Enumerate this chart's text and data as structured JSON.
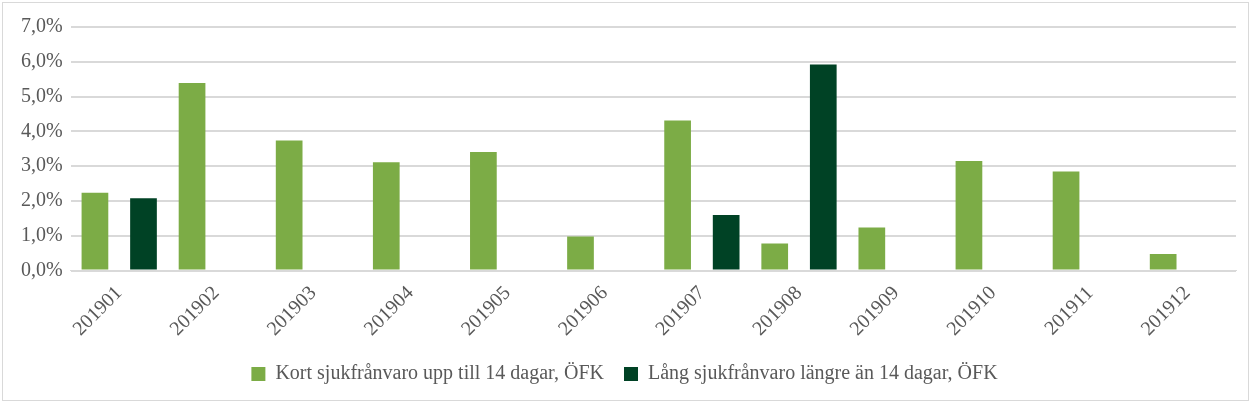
{
  "chart_data": {
    "type": "bar",
    "categories": [
      "201901",
      "201902",
      "201903",
      "201904",
      "201905",
      "201906",
      "201907",
      "201908",
      "201909",
      "201910",
      "201911",
      "201912"
    ],
    "series": [
      {
        "name": "Kort sjukfrånvaro upp till 14 dagar, ÖFK",
        "color": "#7cac46",
        "values": [
          2.24,
          5.39,
          3.74,
          3.11,
          3.41,
          0.98,
          4.31,
          0.78,
          1.24,
          3.15,
          2.85,
          0.48
        ]
      },
      {
        "name": "Lång sjukfrånvaro längre än 14 dagar, ÖFK",
        "color": "#004225",
        "values": [
          2.08,
          null,
          null,
          null,
          null,
          null,
          1.6,
          5.92,
          null,
          null,
          null,
          null
        ]
      }
    ],
    "ylim": [
      0,
      7
    ],
    "yticks": [
      {
        "value": 0,
        "label": "0,0%"
      },
      {
        "value": 1,
        "label": "1,0%"
      },
      {
        "value": 2,
        "label": "2,0%"
      },
      {
        "value": 3,
        "label": "3,0%"
      },
      {
        "value": 4,
        "label": "4,0%"
      },
      {
        "value": 5,
        "label": "5,0%"
      },
      {
        "value": 6,
        "label": "6,0%"
      },
      {
        "value": 7,
        "label": "7,0%"
      }
    ],
    "grid": "y",
    "legend": "bottom"
  }
}
